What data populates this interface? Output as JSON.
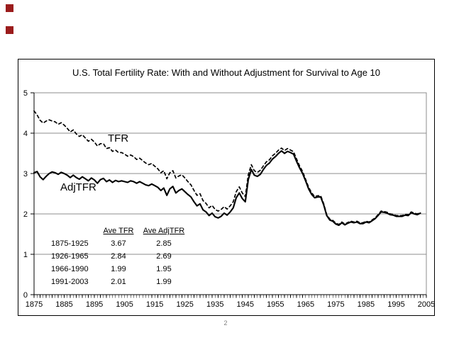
{
  "slide": {
    "page_number": "2"
  },
  "decor": {
    "marker_color": "#9b1c1c",
    "marker_style": "background:#9b1c1c"
  },
  "chart_data": {
    "type": "line",
    "title": "U.S. Total Fertility Rate: With and Without Adjustment for Survival to Age 10",
    "xlabel": "",
    "ylabel": "",
    "xlim": [
      1875,
      2005
    ],
    "ylim": [
      0,
      5
    ],
    "grid": "horizontal",
    "legend_position": "none",
    "x_ticks": [
      1875,
      1885,
      1895,
      1905,
      1915,
      1925,
      1935,
      1945,
      1955,
      1965,
      1975,
      1985,
      1995,
      2005
    ],
    "y_ticks": [
      0,
      1,
      2,
      3,
      4,
      5
    ],
    "years": [
      1875,
      1876,
      1877,
      1878,
      1879,
      1880,
      1881,
      1882,
      1883,
      1884,
      1885,
      1886,
      1887,
      1888,
      1889,
      1890,
      1891,
      1892,
      1893,
      1894,
      1895,
      1896,
      1897,
      1898,
      1899,
      1900,
      1901,
      1902,
      1903,
      1904,
      1905,
      1906,
      1907,
      1908,
      1909,
      1910,
      1911,
      1912,
      1913,
      1914,
      1915,
      1916,
      1917,
      1918,
      1919,
      1920,
      1921,
      1922,
      1923,
      1924,
      1925,
      1926,
      1927,
      1928,
      1929,
      1930,
      1931,
      1932,
      1933,
      1934,
      1935,
      1936,
      1937,
      1938,
      1939,
      1940,
      1941,
      1942,
      1943,
      1944,
      1945,
      1946,
      1947,
      1948,
      1949,
      1950,
      1951,
      1952,
      1953,
      1954,
      1955,
      1956,
      1957,
      1958,
      1959,
      1960,
      1961,
      1962,
      1963,
      1964,
      1965,
      1966,
      1967,
      1968,
      1969,
      1970,
      1971,
      1972,
      1973,
      1974,
      1975,
      1976,
      1977,
      1978,
      1979,
      1980,
      1981,
      1982,
      1983,
      1984,
      1985,
      1986,
      1987,
      1988,
      1989,
      1990,
      1991,
      1992,
      1993,
      1994,
      1995,
      1996,
      1997,
      1998,
      1999,
      2000,
      2001,
      2002,
      2003
    ],
    "series": [
      {
        "name": "TFR",
        "style": "dashed",
        "color": "#000000",
        "values": [
          4.55,
          4.45,
          4.32,
          4.25,
          4.3,
          4.33,
          4.3,
          4.28,
          4.22,
          4.26,
          4.2,
          4.12,
          4.03,
          4.08,
          3.98,
          3.92,
          3.96,
          3.88,
          3.8,
          3.85,
          3.78,
          3.68,
          3.74,
          3.74,
          3.62,
          3.64,
          3.55,
          3.58,
          3.52,
          3.52,
          3.48,
          3.43,
          3.46,
          3.42,
          3.35,
          3.38,
          3.32,
          3.26,
          3.22,
          3.25,
          3.18,
          3.12,
          3.02,
          3.07,
          2.87,
          3.02,
          3.07,
          2.89,
          2.94,
          2.97,
          2.89,
          2.8,
          2.72,
          2.58,
          2.46,
          2.5,
          2.33,
          2.26,
          2.15,
          2.21,
          2.11,
          2.07,
          2.11,
          2.18,
          2.12,
          2.2,
          2.3,
          2.55,
          2.67,
          2.52,
          2.43,
          2.97,
          3.22,
          3.07,
          3.03,
          3.08,
          3.19,
          3.29,
          3.34,
          3.44,
          3.5,
          3.58,
          3.63,
          3.57,
          3.62,
          3.58,
          3.54,
          3.36,
          3.19,
          3.05,
          2.86,
          2.66,
          2.52,
          2.43,
          2.45,
          2.45,
          2.25,
          1.98,
          1.87,
          1.84,
          1.77,
          1.74,
          1.8,
          1.75,
          1.79,
          1.82,
          1.8,
          1.82,
          1.78,
          1.78,
          1.82,
          1.8,
          1.85,
          1.9,
          1.98,
          2.07,
          2.06,
          2.04,
          2.0,
          1.99,
          1.96,
          1.96,
          1.96,
          1.99,
          1.98,
          2.05,
          2.02,
          2.0,
          2.04
        ]
      },
      {
        "name": "AdjTFR",
        "style": "solid",
        "color": "#000000",
        "values": [
          3.02,
          3.05,
          2.92,
          2.85,
          2.93,
          3.0,
          3.04,
          3.02,
          2.98,
          3.03,
          3.0,
          2.96,
          2.9,
          2.96,
          2.9,
          2.86,
          2.92,
          2.87,
          2.82,
          2.89,
          2.84,
          2.76,
          2.85,
          2.88,
          2.8,
          2.84,
          2.78,
          2.83,
          2.8,
          2.82,
          2.8,
          2.78,
          2.82,
          2.8,
          2.76,
          2.8,
          2.76,
          2.72,
          2.7,
          2.74,
          2.7,
          2.66,
          2.58,
          2.64,
          2.46,
          2.62,
          2.68,
          2.52,
          2.58,
          2.62,
          2.55,
          2.48,
          2.42,
          2.3,
          2.2,
          2.25,
          2.1,
          2.05,
          1.96,
          2.02,
          1.93,
          1.9,
          1.94,
          2.02,
          1.97,
          2.05,
          2.15,
          2.4,
          2.52,
          2.38,
          2.3,
          2.85,
          3.1,
          2.96,
          2.93,
          2.98,
          3.1,
          3.2,
          3.26,
          3.36,
          3.42,
          3.5,
          3.56,
          3.5,
          3.55,
          3.52,
          3.48,
          3.3,
          3.14,
          3.0,
          2.82,
          2.62,
          2.48,
          2.4,
          2.42,
          2.42,
          2.22,
          1.96,
          1.85,
          1.82,
          1.75,
          1.72,
          1.78,
          1.73,
          1.77,
          1.8,
          1.78,
          1.8,
          1.76,
          1.76,
          1.8,
          1.78,
          1.83,
          1.88,
          1.96,
          2.05,
          2.04,
          2.02,
          1.98,
          1.97,
          1.94,
          1.94,
          1.94,
          1.97,
          1.96,
          2.03,
          2.0,
          1.98,
          2.02
        ]
      }
    ],
    "annotations": [
      {
        "text": "TFR",
        "year": 1902,
        "value": 3.9
      },
      {
        "text": "AdjTFR",
        "year": 1886,
        "value": 2.55
      }
    ],
    "inset_table": {
      "col_headers": [
        "Ave TFR",
        "Ave AdjTFR"
      ],
      "rows": [
        {
          "period": "1875-1925",
          "ave_tfr": "3.67",
          "ave_adjtfr": "2.85"
        },
        {
          "period": "1926-1965",
          "ave_tfr": "2.84",
          "ave_adjtfr": "2.69"
        },
        {
          "period": "1966-1990",
          "ave_tfr": "1.99",
          "ave_adjtfr": "1.95"
        },
        {
          "period": "1991-2003",
          "ave_tfr": "2.01",
          "ave_adjtfr": "1.99"
        }
      ]
    }
  }
}
